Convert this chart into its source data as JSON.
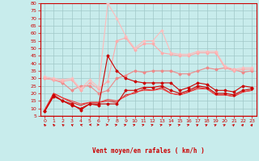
{
  "title": "",
  "xlabel": "Vent moyen/en rafales ( km/h )",
  "bg_color": "#c8ecec",
  "grid_color": "#a0c8c8",
  "axis_color": "#cc0000",
  "text_color": "#cc0000",
  "xlim": [
    -0.5,
    23.5
  ],
  "ylim": [
    5,
    80
  ],
  "yticks": [
    5,
    10,
    15,
    20,
    25,
    30,
    35,
    40,
    45,
    50,
    55,
    60,
    65,
    70,
    75,
    80
  ],
  "xticks": [
    0,
    1,
    2,
    3,
    4,
    5,
    6,
    7,
    8,
    9,
    10,
    11,
    12,
    13,
    14,
    15,
    16,
    17,
    18,
    19,
    20,
    21,
    22,
    23
  ],
  "series": [
    {
      "x": [
        0,
        1,
        2,
        3,
        4,
        5,
        6,
        7,
        8,
        9,
        10,
        11,
        12,
        13,
        14,
        15,
        16,
        17,
        18,
        19,
        20,
        21,
        22,
        23
      ],
      "y": [
        8,
        18,
        15,
        12,
        10,
        13,
        12,
        45,
        35,
        30,
        28,
        27,
        27,
        27,
        27,
        22,
        24,
        27,
        26,
        22,
        22,
        21,
        25,
        24
      ],
      "color": "#cc0000",
      "marker": "D",
      "markersize": 1.5,
      "linewidth": 0.8,
      "zorder": 5
    },
    {
      "x": [
        0,
        1,
        2,
        3,
        4,
        5,
        6,
        7,
        8,
        9,
        10,
        11,
        12,
        13,
        14,
        15,
        16,
        17,
        18,
        19,
        20,
        21,
        22,
        23
      ],
      "y": [
        8,
        19,
        15,
        13,
        9,
        13,
        13,
        13,
        13,
        22,
        22,
        24,
        24,
        25,
        22,
        20,
        22,
        25,
        24,
        20,
        20,
        19,
        22,
        23
      ],
      "color": "#cc0000",
      "marker": "D",
      "markersize": 1.5,
      "linewidth": 0.8,
      "zorder": 4
    },
    {
      "x": [
        0,
        1,
        2,
        3,
        4,
        5,
        6,
        7,
        8,
        9,
        10,
        11,
        12,
        13,
        14,
        15,
        16,
        17,
        18,
        19,
        20,
        21,
        22,
        23
      ],
      "y": [
        9,
        20,
        17,
        14,
        12,
        14,
        14,
        15,
        14,
        19,
        20,
        23,
        22,
        24,
        20,
        19,
        21,
        24,
        23,
        19,
        19,
        18,
        21,
        22
      ],
      "color": "#dd2222",
      "marker": null,
      "markersize": 1,
      "linewidth": 0.8,
      "zorder": 3
    },
    {
      "x": [
        0,
        1,
        2,
        3,
        4,
        5,
        6,
        7,
        8,
        9,
        10,
        11,
        12,
        13,
        14,
        15,
        16,
        17,
        18,
        19,
        20,
        21,
        22,
        23
      ],
      "y": [
        9,
        20,
        17,
        15,
        13,
        14,
        14,
        16,
        15,
        18,
        21,
        22,
        22,
        23,
        20,
        19,
        21,
        23,
        23,
        19,
        19,
        18,
        21,
        22
      ],
      "color": "#ee4444",
      "marker": null,
      "markersize": 1,
      "linewidth": 0.8,
      "zorder": 3
    },
    {
      "x": [
        0,
        1,
        2,
        3,
        4,
        5,
        6,
        7,
        8,
        9,
        10,
        11,
        12,
        13,
        14,
        15,
        16,
        17,
        18,
        19,
        20,
        21,
        22,
        23
      ],
      "y": [
        30,
        29,
        27,
        22,
        25,
        25,
        20,
        22,
        30,
        32,
        35,
        34,
        35,
        35,
        35,
        33,
        33,
        35,
        37,
        36,
        37,
        36,
        34,
        35
      ],
      "color": "#ee8888",
      "marker": "D",
      "markersize": 1.5,
      "linewidth": 0.8,
      "zorder": 4
    },
    {
      "x": [
        0,
        1,
        2,
        3,
        4,
        5,
        6,
        7,
        8,
        9,
        10,
        11,
        12,
        13,
        14,
        15,
        16,
        17,
        18,
        19,
        20,
        21,
        22,
        23
      ],
      "y": [
        30,
        29,
        28,
        29,
        22,
        27,
        23,
        28,
        55,
        57,
        49,
        53,
        53,
        47,
        46,
        45,
        45,
        47,
        47,
        47,
        37,
        35,
        36,
        36
      ],
      "color": "#ffaaaa",
      "marker": "D",
      "markersize": 1.5,
      "linewidth": 0.8,
      "zorder": 4
    },
    {
      "x": [
        0,
        1,
        2,
        3,
        4,
        5,
        6,
        7,
        8,
        9,
        10,
        11,
        12,
        13,
        14,
        15,
        16,
        17,
        18,
        19,
        20,
        21,
        22,
        23
      ],
      "y": [
        31,
        30,
        29,
        30,
        23,
        29,
        24,
        80,
        70,
        58,
        50,
        55,
        55,
        62,
        47,
        46,
        46,
        48,
        48,
        48,
        38,
        36,
        37,
        37
      ],
      "color": "#ffbbbb",
      "marker": "+",
      "markersize": 2.5,
      "linewidth": 0.8,
      "zorder": 4
    }
  ],
  "wind_arrow_angles": [
    135,
    135,
    150,
    160,
    170,
    180,
    0,
    0,
    10,
    10,
    10,
    10,
    10,
    10,
    10,
    10,
    10,
    20,
    20,
    20,
    20,
    30,
    40,
    50
  ],
  "wind_arrows_color": "#cc0000"
}
